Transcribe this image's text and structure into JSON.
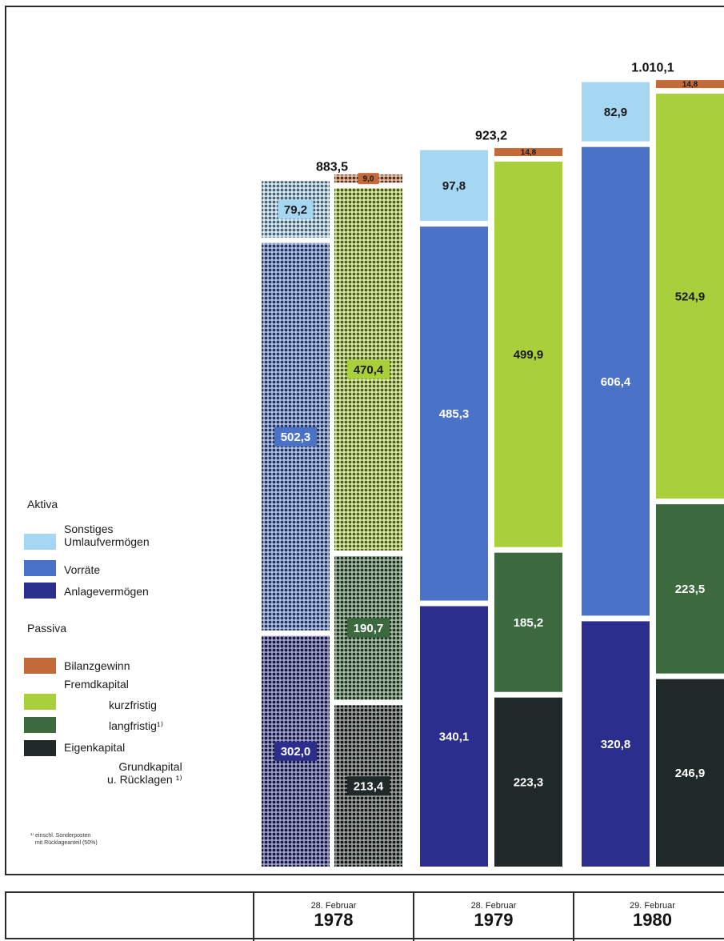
{
  "legend": {
    "aktiva_title": "Aktiva",
    "passiva_title": "Passiva",
    "items": [
      {
        "label": "Sonstiges\nUmlaufvermögen",
        "color": "#a6d7f2"
      },
      {
        "label": "Vorräte",
        "color": "#4a72c6"
      },
      {
        "label": "Anlagevermögen",
        "color": "#2b2e8c"
      },
      {
        "label": "Bilanzgewinn",
        "color": "#c26a3a"
      },
      {
        "label": "Fremdkapital",
        "color": ""
      },
      {
        "label": "kurzfristig",
        "color": "#a9cf3a"
      },
      {
        "label": "langfristig¹⁾",
        "color": "#3c6a3e"
      },
      {
        "label": "Eigenkapital",
        "color": "#1f2a28"
      },
      {
        "label": "Grundkapital\nu. Rücklagen ¹⁾",
        "color": ""
      }
    ],
    "footnote": "¹⁾ einschl. Sonderposten\n   mit Rücklageanteil (50%)"
  },
  "footer": {
    "columns": [
      {
        "date": "28. Februar",
        "year": "1978"
      },
      {
        "date": "28. Februar",
        "year": "1979"
      },
      {
        "date": "29. Februar",
        "year": "1980"
      }
    ]
  },
  "chart_data": {
    "type": "bar",
    "stacked": true,
    "categories": [
      "1978",
      "1979",
      "1980"
    ],
    "totals": [
      "883,5",
      "923,2",
      "1.010,1"
    ],
    "aktiva": [
      {
        "name": "Anlagevermögen",
        "values": [
          302.0,
          340.1,
          320.8
        ],
        "labels": [
          "302,0",
          "340,1",
          "320,8"
        ],
        "color": "#2b2e8c",
        "text_color": "#ffffff"
      },
      {
        "name": "Vorräte",
        "values": [
          502.3,
          485.3,
          606.4
        ],
        "labels": [
          "502,3",
          "485,3",
          "606,4"
        ],
        "color": "#4a72c6",
        "text_color": "#ffffff"
      },
      {
        "name": "Sonstiges Umlaufvermögen",
        "values": [
          79.2,
          97.8,
          82.9
        ],
        "labels": [
          "79,2",
          "97,8",
          "82,9"
        ],
        "color": "#a6d7f2",
        "text_color": "#1a1a1a"
      }
    ],
    "passiva": [
      {
        "name": "Grundkapital u. Rücklagen",
        "values": [
          213.4,
          223.3,
          246.9
        ],
        "labels": [
          "213,4",
          "223,3",
          "246,9"
        ],
        "color": "#1f2a28",
        "text_color": "#ffffff"
      },
      {
        "name": "langfristig",
        "values": [
          190.7,
          185.2,
          223.5
        ],
        "labels": [
          "190,7",
          "185,2",
          "223,5"
        ],
        "color": "#3c6a3e",
        "text_color": "#ffffff"
      },
      {
        "name": "kurzfristig",
        "values": [
          470.4,
          499.9,
          524.9
        ],
        "labels": [
          "470,4",
          "499,9",
          "524,9"
        ],
        "color": "#a9cf3a",
        "text_color": "#1a1a1a"
      },
      {
        "name": "Bilanzgewinn",
        "values": [
          9.0,
          14.8,
          14.8
        ],
        "labels": [
          "9,0",
          "14,8",
          "14,8"
        ],
        "color": "#c26a3a",
        "text_color": "#1a1a1a"
      }
    ],
    "patterned": [
      true,
      false,
      false
    ]
  }
}
